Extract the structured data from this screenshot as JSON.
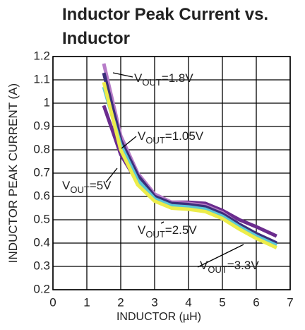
{
  "chart_data": {
    "type": "line",
    "title_lines": [
      "Inductor Peak Current vs.",
      "Inductor"
    ],
    "x_label": "INDUCTOR (µH)",
    "y_label": "INDUCTOR PEAK CURRENT (A)",
    "xlim": [
      0,
      7
    ],
    "xticks": [
      0,
      1,
      2,
      3,
      4,
      5,
      6,
      7
    ],
    "ylim": [
      0.2,
      1.2
    ],
    "yticks": [
      0.2,
      0.3,
      0.4,
      0.5,
      0.6,
      0.7,
      0.8,
      0.9,
      1,
      1.1,
      1.2
    ],
    "grid": true,
    "x": [
      1.5,
      2,
      2.5,
      3,
      3.5,
      4,
      4.5,
      5,
      5.5,
      6,
      6.6
    ],
    "series": [
      {
        "color": "#6b2c8e",
        "values": [
          0.99,
          0.78,
          0.66,
          0.6,
          0.575,
          0.575,
          0.57,
          0.54,
          0.5,
          0.47,
          0.43
        ]
      },
      {
        "color": "#b77cc8",
        "values": [
          1.17,
          0.86,
          0.7,
          0.61,
          0.575,
          0.57,
          0.56,
          0.53,
          0.48,
          0.44,
          0.4
        ]
      },
      {
        "color": "#3b2f7a",
        "values": [
          1.13,
          0.84,
          0.69,
          0.6,
          0.57,
          0.565,
          0.555,
          0.525,
          0.48,
          0.44,
          0.4
        ]
      },
      {
        "color": "#5cc6d6",
        "values": [
          1.07,
          0.82,
          0.67,
          0.59,
          0.56,
          0.555,
          0.545,
          0.515,
          0.47,
          0.43,
          0.39
        ]
      },
      {
        "color": "#ecec4a",
        "values": [
          1.09,
          0.8,
          0.65,
          0.58,
          0.55,
          0.545,
          0.535,
          0.505,
          0.46,
          0.42,
          0.38
        ]
      }
    ],
    "annotations": [
      {
        "parts": [
          "V",
          "OUT",
          "=5V"
        ]
      },
      {
        "parts": [
          "V",
          "OUT",
          "=1.8V"
        ]
      },
      {
        "parts": [
          "V",
          "OUT",
          "=1.05V"
        ]
      },
      {
        "parts": [
          "V",
          "OUT",
          "=3.3V"
        ]
      },
      {
        "parts": [
          "V",
          "OUT",
          "=2.5V"
        ]
      }
    ]
  }
}
